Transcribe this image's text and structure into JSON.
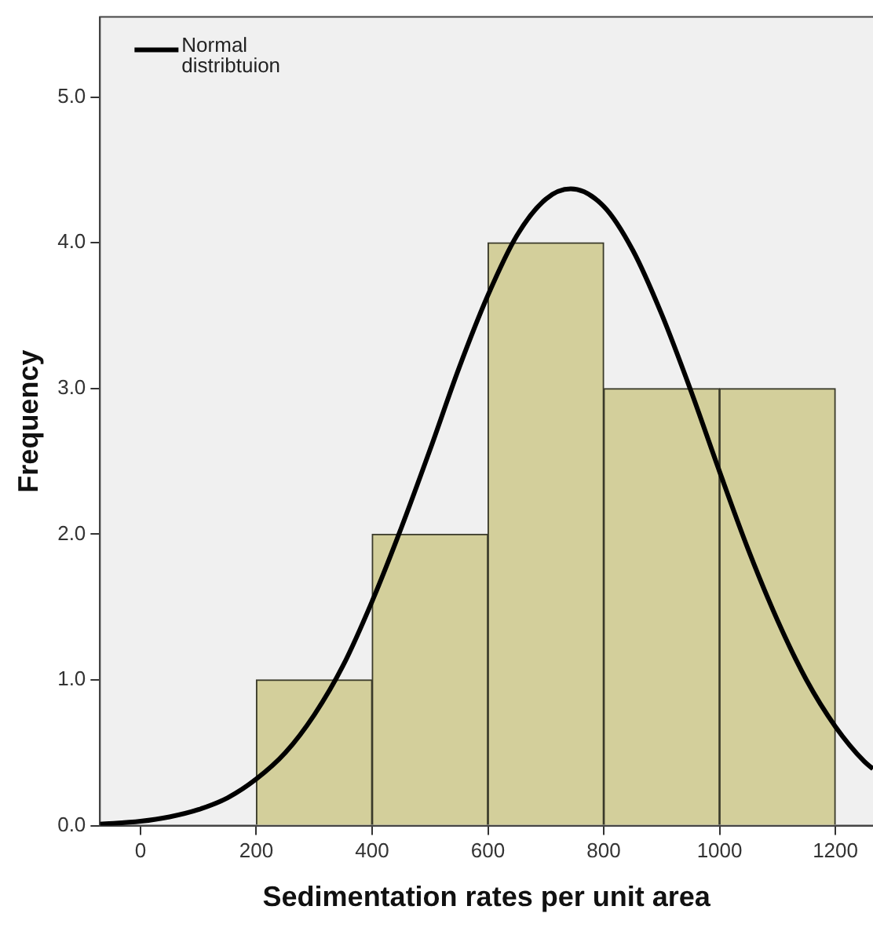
{
  "chart_data": {
    "type": "histogram",
    "xlabel": "Sedimentation rates per unit area",
    "ylabel": "Frequency",
    "bins": [
      200,
      400,
      600,
      800,
      1000,
      1200
    ],
    "values": [
      1,
      2,
      4,
      3,
      3
    ],
    "color": "#d3cf9b",
    "xlim": [
      -70,
      1265
    ],
    "xticks": [
      0,
      200,
      400,
      600,
      800,
      1000,
      1200
    ],
    "ylim": [
      0,
      5.55
    ],
    "yticks": [
      {
        "value": 0,
        "label": "0.0"
      },
      {
        "value": 1,
        "label": "1.0"
      },
      {
        "value": 2,
        "label": "2.0"
      },
      {
        "value": 3,
        "label": "3.0"
      },
      {
        "value": 4,
        "label": "4.0"
      },
      {
        "value": 5,
        "label": "5.0"
      }
    ],
    "grid": false,
    "legend": "top left",
    "marker": "none",
    "series": [
      {
        "type": "line",
        "name": "Normal distribtuion",
        "color": "#000000",
        "x": [
          -70,
          0,
          50,
          100,
          150,
          200,
          250,
          300,
          350,
          400,
          450,
          500,
          550,
          600,
          650,
          700,
          743,
          800,
          850,
          900,
          950,
          1000,
          1050,
          1100,
          1150,
          1200,
          1250,
          1265
        ],
        "values": [
          0.01,
          0.03,
          0.06,
          0.11,
          0.19,
          0.32,
          0.5,
          0.76,
          1.1,
          1.54,
          2.04,
          2.58,
          3.14,
          3.64,
          4.05,
          4.3,
          4.37,
          4.25,
          3.95,
          3.51,
          2.99,
          2.43,
          1.89,
          1.41,
          1.0,
          0.68,
          0.44,
          0.39
        ]
      }
    ]
  }
}
